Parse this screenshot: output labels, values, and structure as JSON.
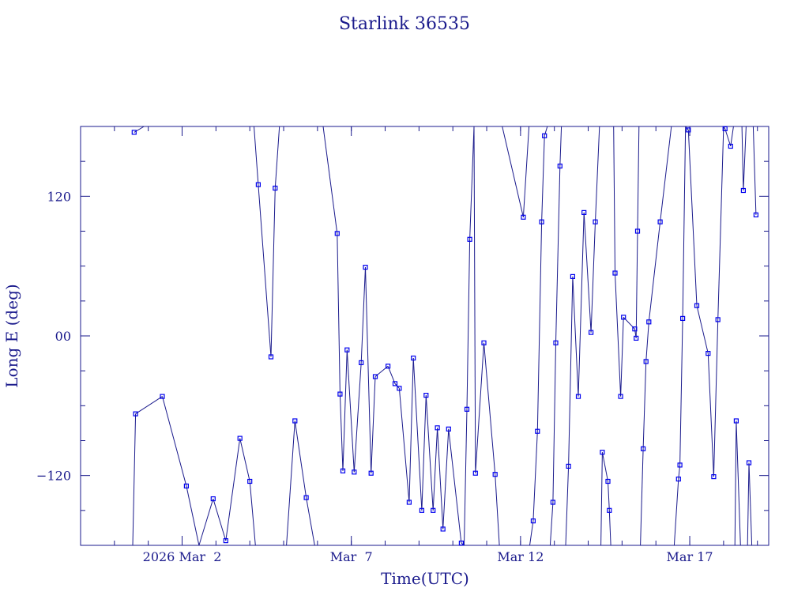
{
  "chart_data": {
    "type": "line",
    "title": "Starlink 36535",
    "xlabel": "Time(UTC)",
    "ylabel": "Long E (deg)",
    "colors": {
      "line": "#1a1a8c",
      "marker": "#0000ee",
      "axis": "#1a1a8c"
    },
    "xlim": [
      "2026-02-27T00:00",
      "2026-03-19T08:00"
    ],
    "ylim": [
      -180,
      180
    ],
    "x_ticks": [
      {
        "x": "2026-03-02",
        "label": "2026 Mar  2"
      },
      {
        "x": "2026-03-07",
        "label": "Mar  7"
      },
      {
        "x": "2026-03-12",
        "label": "Mar 12"
      },
      {
        "x": "2026-03-17",
        "label": "Mar 17"
      }
    ],
    "y_ticks": [
      {
        "y": 120,
        "label": "120"
      },
      {
        "y": 0,
        "label": "00"
      },
      {
        "y": -120,
        "label": "−120"
      }
    ],
    "series": [
      {
        "points": [
          [
            "2026-02-28T14:00",
            175
          ],
          [
            "2026-02-28T21:00",
            180
          ],
          [
            "2026-02-28T13:00",
            -180
          ],
          [
            "2026-02-28T15:00",
            -67
          ],
          [
            "2026-03-01T10:00",
            -52
          ],
          [
            "2026-03-02T03:00",
            -129
          ],
          [
            "2026-03-02T12:00",
            -180
          ],
          [
            "2026-03-02T22:00",
            -140
          ],
          [
            "2026-03-03T07:00",
            -176
          ],
          [
            "2026-03-03T17:00",
            -88
          ],
          [
            "2026-03-04T00:00",
            -125
          ],
          [
            "2026-03-04T04:00",
            -180
          ],
          [
            "2026-03-04T03:00",
            180
          ],
          [
            "2026-03-04T06:00",
            130
          ],
          [
            "2026-03-04T15:00",
            -18
          ],
          [
            "2026-03-04T18:00",
            127
          ],
          [
            "2026-03-04T21:00",
            180
          ],
          [
            "2026-03-05T02:00",
            -180
          ],
          [
            "2026-03-05T08:00",
            -73
          ],
          [
            "2026-03-05T16:00",
            -139
          ],
          [
            "2026-03-05T22:00",
            -180
          ],
          [
            "2026-03-06T04:00",
            180
          ],
          [
            "2026-03-06T14:00",
            88
          ],
          [
            "2026-03-06T16:00",
            -50
          ],
          [
            "2026-03-06T18:00",
            -116
          ],
          [
            "2026-03-06T21:00",
            -12
          ],
          [
            "2026-03-07T02:00",
            -117
          ],
          [
            "2026-03-07T07:00",
            -23
          ],
          [
            "2026-03-07T10:00",
            59
          ],
          [
            "2026-03-07T14:00",
            -118
          ],
          [
            "2026-03-07T17:00",
            -35
          ],
          [
            "2026-03-08T02:00",
            -26
          ],
          [
            "2026-03-08T07:00",
            -41
          ],
          [
            "2026-03-08T10:00",
            -45
          ],
          [
            "2026-03-08T17:00",
            -143
          ],
          [
            "2026-03-08T20:00",
            -19
          ],
          [
            "2026-03-09T02:00",
            -150
          ],
          [
            "2026-03-09T05:00",
            -51
          ],
          [
            "2026-03-09T10:00",
            -150
          ],
          [
            "2026-03-09T13:00",
            -79
          ],
          [
            "2026-03-09T17:00",
            -166
          ],
          [
            "2026-03-09T21:00",
            -80
          ],
          [
            "2026-03-10T06:00",
            -178
          ],
          [
            "2026-03-10T08:00",
            -180
          ]
        ]
      },
      {
        "points": [
          [
            "2026-03-10T08:00",
            -180
          ],
          [
            "2026-03-10T10:00",
            -63
          ],
          [
            "2026-03-10T12:00",
            83
          ],
          [
            "2026-03-10T15:00",
            180
          ],
          [
            "2026-03-10T16:00",
            -118
          ],
          [
            "2026-03-10T22:00",
            -6
          ],
          [
            "2026-03-11T06:00",
            -119
          ],
          [
            "2026-03-11T09:00",
            -180
          ],
          [
            "2026-03-11T11:00",
            180
          ],
          [
            "2026-03-12T02:00",
            102
          ],
          [
            "2026-03-12T06:00",
            180
          ],
          [
            "2026-03-12T06:30",
            -180
          ],
          [
            "2026-03-12T09:00",
            -159
          ],
          [
            "2026-03-12T12:00",
            -82
          ],
          [
            "2026-03-12T15:00",
            98
          ],
          [
            "2026-03-12T17:00",
            172
          ],
          [
            "2026-03-12T19:00",
            180
          ],
          [
            "2026-03-12T21:00",
            -180
          ],
          [
            "2026-03-12T23:00",
            -143
          ],
          [
            "2026-03-13T01:00",
            -6
          ],
          [
            "2026-03-13T04:00",
            146
          ],
          [
            "2026-03-13T05:00",
            180
          ],
          [
            "2026-03-13T08:00",
            -180
          ],
          [
            "2026-03-13T10:00",
            -112
          ],
          [
            "2026-03-13T13:00",
            51
          ],
          [
            "2026-03-13T17:00",
            -52
          ],
          [
            "2026-03-13T21:00",
            106
          ],
          [
            "2026-03-14T02:00",
            3
          ],
          [
            "2026-03-14T05:00",
            98
          ],
          [
            "2026-03-14T08:00",
            180
          ],
          [
            "2026-03-14T09:00",
            -180
          ],
          [
            "2026-03-14T10:00",
            -100
          ],
          [
            "2026-03-14T14:00",
            -125
          ],
          [
            "2026-03-14T15:00",
            -150
          ],
          [
            "2026-03-14T16:00",
            -180
          ],
          [
            "2026-03-14T18:00",
            180
          ],
          [
            "2026-03-14T19:00",
            54
          ],
          [
            "2026-03-14T23:00",
            -52
          ],
          [
            "2026-03-15T01:00",
            16
          ],
          [
            "2026-03-15T09:00",
            6
          ],
          [
            "2026-03-15T10:00",
            -2
          ],
          [
            "2026-03-15T11:00",
            90
          ],
          [
            "2026-03-15T12:00",
            180
          ],
          [
            "2026-03-15T13:00",
            -180
          ],
          [
            "2026-03-15T15:00",
            -97
          ],
          [
            "2026-03-15T17:00",
            -22
          ],
          [
            "2026-03-15T19:00",
            12
          ],
          [
            "2026-03-16T03:00",
            98
          ],
          [
            "2026-03-16T11:00",
            180
          ],
          [
            "2026-03-16T13:00",
            -180
          ],
          [
            "2026-03-16T16:00",
            -123
          ],
          [
            "2026-03-16T17:00",
            -111
          ],
          [
            "2026-03-16T19:00",
            15
          ],
          [
            "2026-03-16T21:00",
            180
          ],
          [
            "2026-03-16T23:00",
            177
          ],
          [
            "2026-03-17T05:00",
            26
          ],
          [
            "2026-03-17T13:00",
            -15
          ],
          [
            "2026-03-17T17:00",
            -121
          ],
          [
            "2026-03-17T20:00",
            14
          ],
          [
            "2026-03-18T00:00",
            180
          ],
          [
            "2026-03-18T01:00",
            178
          ],
          [
            "2026-03-18T05:00",
            163
          ],
          [
            "2026-03-18T07:00",
            180
          ],
          [
            "2026-03-18T08:00",
            -180
          ],
          [
            "2026-03-18T09:00",
            -73
          ],
          [
            "2026-03-18T12:00",
            -180
          ],
          [
            "2026-03-18T13:00",
            180
          ],
          [
            "2026-03-18T14:00",
            125
          ],
          [
            "2026-03-18T16:00",
            180
          ],
          [
            "2026-03-18T17:00",
            -180
          ],
          [
            "2026-03-18T18:00",
            -109
          ],
          [
            "2026-03-18T20:00",
            -180
          ],
          [
            "2026-03-18T21:00",
            180
          ],
          [
            "2026-03-18T23:00",
            104
          ]
        ]
      }
    ]
  }
}
